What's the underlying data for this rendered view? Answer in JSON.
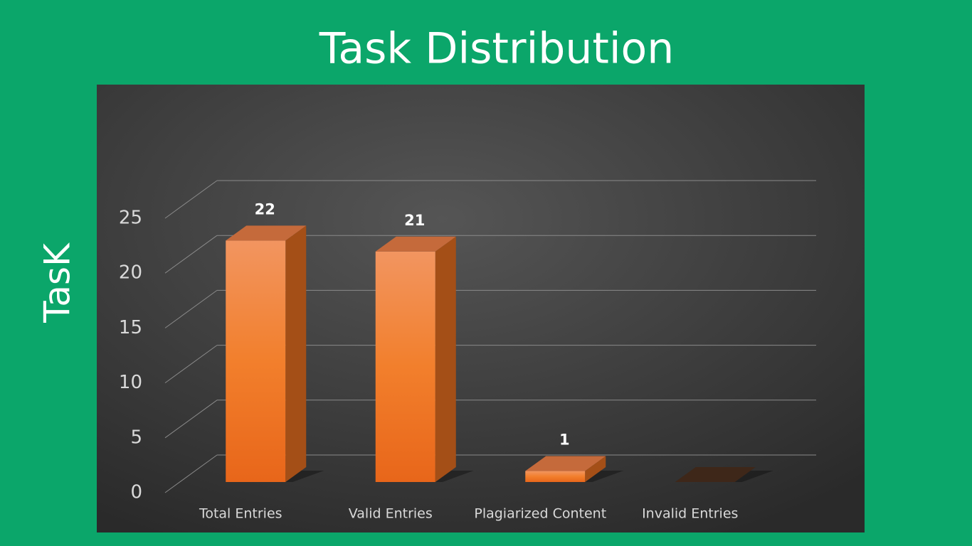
{
  "chart_data": {
    "type": "bar3d",
    "title": "Task Distribution",
    "y_label": "TasK",
    "categories": [
      "Total Entries",
      "Valid Entries",
      "Plagiarized Content",
      "Invalid Entries"
    ],
    "values": [
      22,
      21,
      1,
      0
    ],
    "color": "#ef7b2a",
    "ylim": [
      0,
      25
    ],
    "yticks": [
      0,
      5,
      10,
      15,
      20,
      25
    ],
    "grid": true
  }
}
